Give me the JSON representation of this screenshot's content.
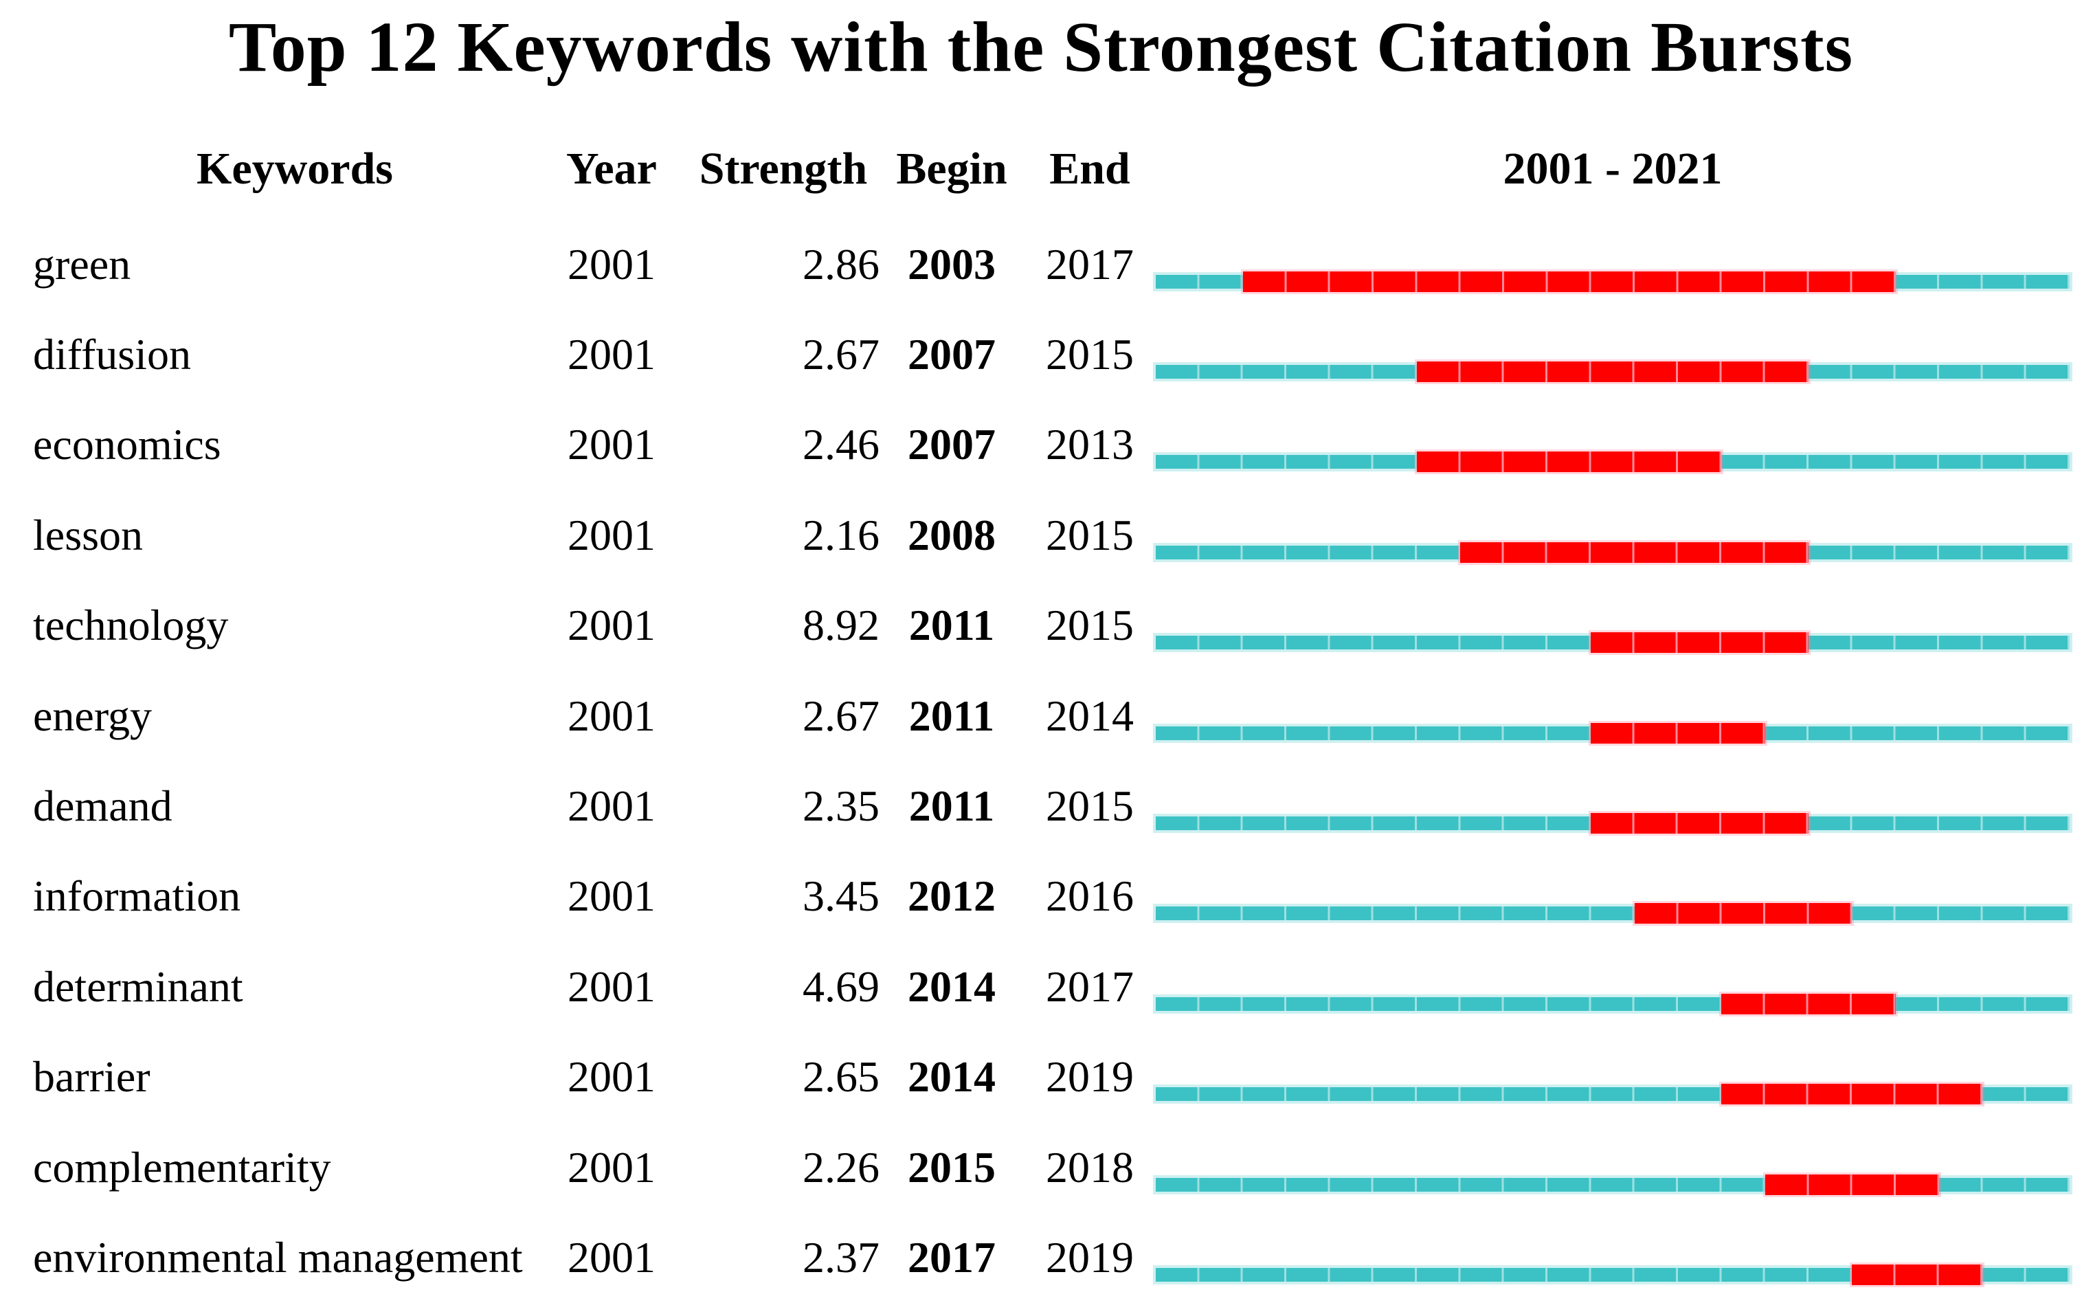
{
  "title": "Top 12 Keywords with the Strongest Citation Bursts",
  "header": {
    "keywords": "Keywords",
    "year": "Year",
    "strength": "Strength",
    "begin": "Begin",
    "end": "End",
    "timeline": "2001 - 2021"
  },
  "timeline": {
    "start_year": 2001,
    "end_year": 2021
  },
  "colors": {
    "text": "#000000",
    "background": "#ffffff",
    "timeline_line": "#3cc2c4",
    "timeline_tick": "#9ee0e2",
    "burst_bar": "#ff0000",
    "burst_tick": "#ff8a9a"
  },
  "rows": [
    {
      "keyword": "green",
      "year": "2001",
      "strength": "2.86",
      "begin": "2003",
      "end": "2017"
    },
    {
      "keyword": "diffusion",
      "year": "2001",
      "strength": "2.67",
      "begin": "2007",
      "end": "2015"
    },
    {
      "keyword": "economics",
      "year": "2001",
      "strength": "2.46",
      "begin": "2007",
      "end": "2013"
    },
    {
      "keyword": "lesson",
      "year": "2001",
      "strength": "2.16",
      "begin": "2008",
      "end": "2015"
    },
    {
      "keyword": "technology",
      "year": "2001",
      "strength": "8.92",
      "begin": "2011",
      "end": "2015"
    },
    {
      "keyword": "energy",
      "year": "2001",
      "strength": "2.67",
      "begin": "2011",
      "end": "2014"
    },
    {
      "keyword": "demand",
      "year": "2001",
      "strength": "2.35",
      "begin": "2011",
      "end": "2015"
    },
    {
      "keyword": "information",
      "year": "2001",
      "strength": "3.45",
      "begin": "2012",
      "end": "2016"
    },
    {
      "keyword": "determinant",
      "year": "2001",
      "strength": "4.69",
      "begin": "2014",
      "end": "2017"
    },
    {
      "keyword": "barrier",
      "year": "2001",
      "strength": "2.65",
      "begin": "2014",
      "end": "2019"
    },
    {
      "keyword": "complementarity",
      "year": "2001",
      "strength": "2.26",
      "begin": "2015",
      "end": "2018"
    },
    {
      "keyword": "environmental management",
      "year": "2001",
      "strength": "2.37",
      "begin": "2017",
      "end": "2019"
    }
  ],
  "chart_data": {
    "type": "table",
    "title": "Top 12 Keywords with the Strongest Citation Bursts",
    "columns": [
      "Keywords",
      "Year",
      "Strength",
      "Begin",
      "End"
    ],
    "timeline_label": "2001 - 2021",
    "timeline_range": [
      2001,
      2021
    ],
    "rows": [
      {
        "keyword": "green",
        "year": 2001,
        "strength": 2.86,
        "begin": 2003,
        "end": 2017
      },
      {
        "keyword": "diffusion",
        "year": 2001,
        "strength": 2.67,
        "begin": 2007,
        "end": 2015
      },
      {
        "keyword": "economics",
        "year": 2001,
        "strength": 2.46,
        "begin": 2007,
        "end": 2013
      },
      {
        "keyword": "lesson",
        "year": 2001,
        "strength": 2.16,
        "begin": 2008,
        "end": 2015
      },
      {
        "keyword": "technology",
        "year": 2001,
        "strength": 8.92,
        "begin": 2011,
        "end": 2015
      },
      {
        "keyword": "energy",
        "year": 2001,
        "strength": 2.67,
        "begin": 2011,
        "end": 2014
      },
      {
        "keyword": "demand",
        "year": 2001,
        "strength": 2.35,
        "begin": 2011,
        "end": 2015
      },
      {
        "keyword": "information",
        "year": 2001,
        "strength": 3.45,
        "begin": 2012,
        "end": 2016
      },
      {
        "keyword": "determinant",
        "year": 2001,
        "strength": 4.69,
        "begin": 2014,
        "end": 2017
      },
      {
        "keyword": "barrier",
        "year": 2001,
        "strength": 2.65,
        "begin": 2014,
        "end": 2019
      },
      {
        "keyword": "complementarity",
        "year": 2001,
        "strength": 2.26,
        "begin": 2015,
        "end": 2018
      },
      {
        "keyword": "environmental management",
        "year": 2001,
        "strength": 2.37,
        "begin": 2017,
        "end": 2019
      }
    ]
  }
}
